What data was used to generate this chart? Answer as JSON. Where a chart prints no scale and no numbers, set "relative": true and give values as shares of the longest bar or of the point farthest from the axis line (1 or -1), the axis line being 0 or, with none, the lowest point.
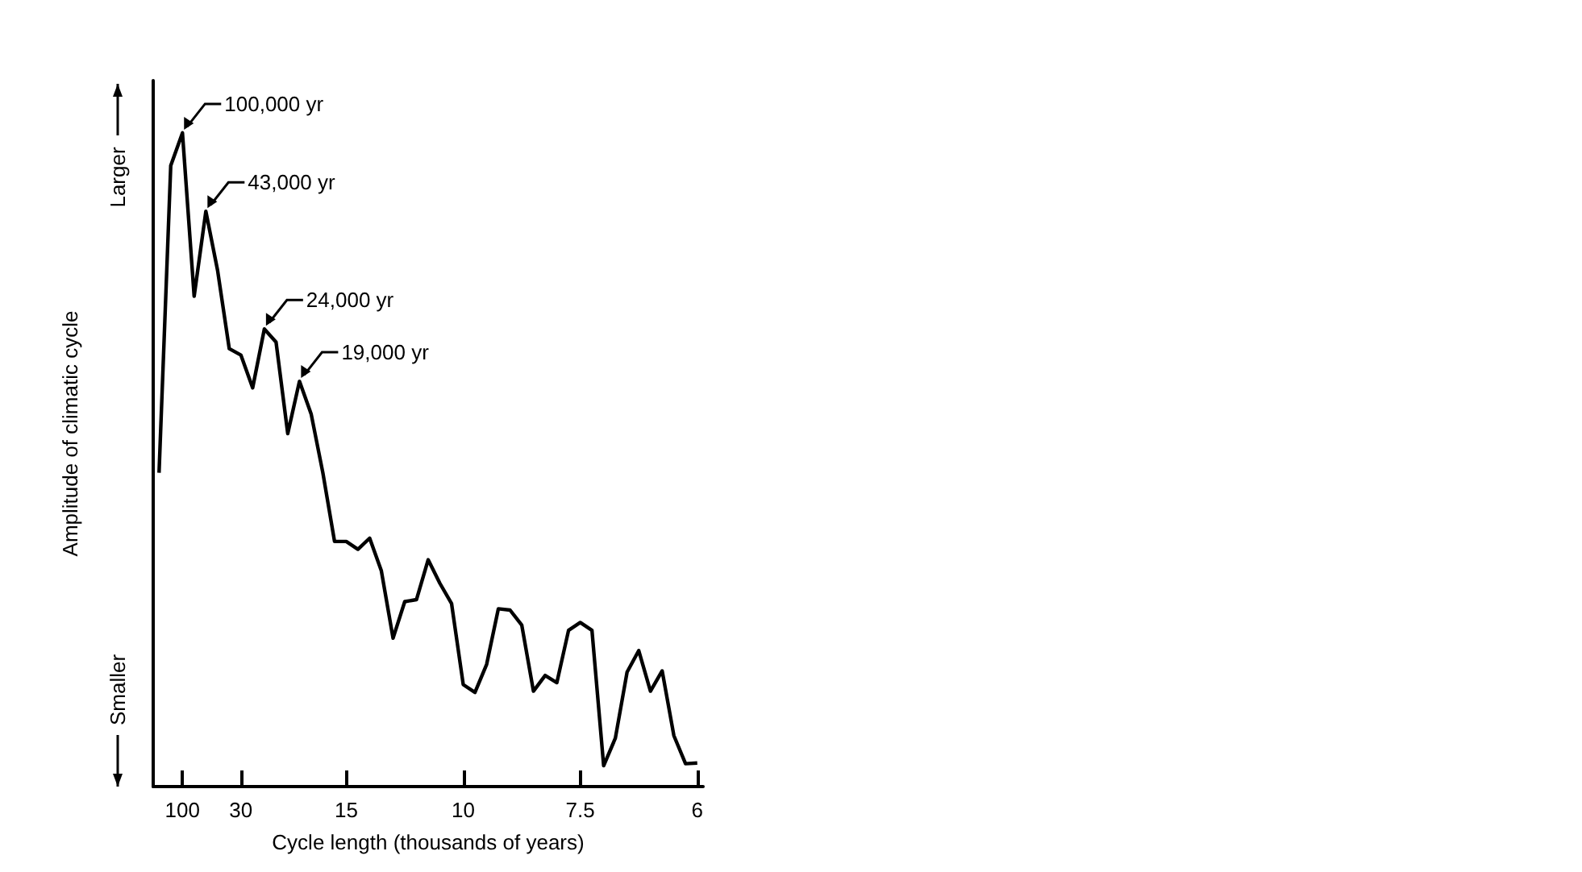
{
  "chart_data": {
    "type": "line",
    "xlabel": "Cycle length (thousands of years)",
    "ylabel": "Amplitude of climatic cycle",
    "relative": true,
    "color": "#000000",
    "marker": "none",
    "grid": false,
    "categories": [
      null,
      null,
      "100",
      null,
      null,
      null,
      null,
      "30",
      null,
      null,
      null,
      null,
      null,
      null,
      null,
      null,
      "15",
      null,
      null,
      null,
      null,
      null,
      null,
      null,
      null,
      null,
      "10",
      null,
      null,
      null,
      null,
      null,
      null,
      null,
      null,
      null,
      "7.5",
      null,
      null,
      null,
      null,
      null,
      null,
      null,
      null,
      null,
      "6"
    ],
    "values": [
      0.48,
      0.95,
      1.0,
      0.75,
      0.88,
      0.79,
      0.67,
      0.66,
      0.61,
      0.7,
      0.68,
      0.54,
      0.62,
      0.57,
      0.48,
      0.375,
      0.375,
      0.363,
      0.38,
      0.33,
      0.227,
      0.283,
      0.286,
      0.347,
      0.311,
      0.28,
      0.156,
      0.144,
      0.187,
      0.272,
      0.27,
      0.247,
      0.146,
      0.17,
      0.159,
      0.239,
      0.251,
      0.239,
      0.032,
      0.074,
      0.175,
      0.208,
      0.146,
      0.177,
      0.078,
      0.035,
      0.036
    ],
    "annotations": [
      "Larger",
      "Smaller",
      "100,000 yr",
      "43,000 yr",
      "24,000 yr",
      "19,000 yr"
    ]
  }
}
